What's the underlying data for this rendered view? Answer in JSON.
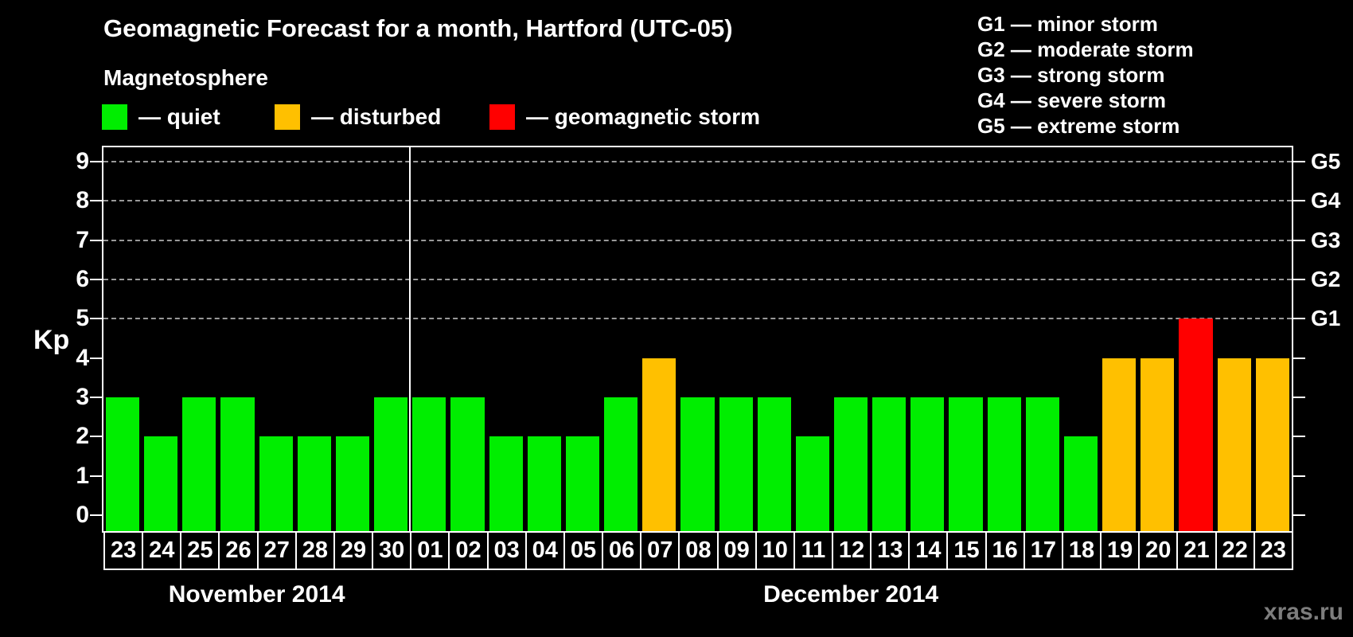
{
  "title": "Geomagnetic Forecast for a month, Hartford (UTC-05)",
  "subtitle": "Magnetosphere",
  "legend": {
    "items": [
      {
        "state": "quiet",
        "label": "— quiet",
        "color": "#00ee00"
      },
      {
        "state": "disturbed",
        "label": "— disturbed",
        "color": "#ffc000"
      },
      {
        "state": "storm",
        "label": "— geomagnetic storm",
        "color": "#ff0000"
      }
    ]
  },
  "g_scale_legend": [
    "G1 — minor storm",
    "G2 — moderate storm",
    "G3 — strong storm",
    "G4 — severe storm",
    "G5 — extreme storm"
  ],
  "watermark": "xras.ru",
  "chart_data": {
    "type": "bar",
    "ylabel": "Kp",
    "ylim": [
      0,
      9
    ],
    "yticks": [
      0,
      1,
      2,
      3,
      4,
      5,
      6,
      7,
      8,
      9
    ],
    "grid_dashed_at": [
      5,
      6,
      7,
      8,
      9
    ],
    "right_axis_labels": [
      {
        "kp": 5,
        "label": "G1"
      },
      {
        "kp": 6,
        "label": "G2"
      },
      {
        "kp": 7,
        "label": "G3"
      },
      {
        "kp": 8,
        "label": "G4"
      },
      {
        "kp": 9,
        "label": "G5"
      }
    ],
    "months": [
      {
        "label": "November 2014",
        "days": 8
      },
      {
        "label": "December 2014",
        "days": 23
      }
    ],
    "categories": [
      "23",
      "24",
      "25",
      "26",
      "27",
      "28",
      "29",
      "30",
      "01",
      "02",
      "03",
      "04",
      "05",
      "06",
      "07",
      "08",
      "09",
      "10",
      "11",
      "12",
      "13",
      "14",
      "15",
      "16",
      "17",
      "18",
      "19",
      "20",
      "21",
      "22",
      "23"
    ],
    "values": [
      3,
      2,
      3,
      3,
      2,
      2,
      2,
      3,
      3,
      3,
      2,
      2,
      2,
      3,
      4,
      3,
      3,
      3,
      2,
      3,
      3,
      3,
      3,
      3,
      3,
      2,
      4,
      4,
      5,
      4,
      4
    ],
    "states": [
      "quiet",
      "quiet",
      "quiet",
      "quiet",
      "quiet",
      "quiet",
      "quiet",
      "quiet",
      "quiet",
      "quiet",
      "quiet",
      "quiet",
      "quiet",
      "quiet",
      "disturbed",
      "quiet",
      "quiet",
      "quiet",
      "quiet",
      "quiet",
      "quiet",
      "quiet",
      "quiet",
      "quiet",
      "quiet",
      "quiet",
      "disturbed",
      "disturbed",
      "storm",
      "disturbed",
      "disturbed"
    ],
    "state_colors": {
      "quiet": "#00ee00",
      "disturbed": "#ffc000",
      "storm": "#ff0000"
    },
    "axis_color": "#ffffff",
    "grid_color": "#999999",
    "legend_position": "top"
  }
}
